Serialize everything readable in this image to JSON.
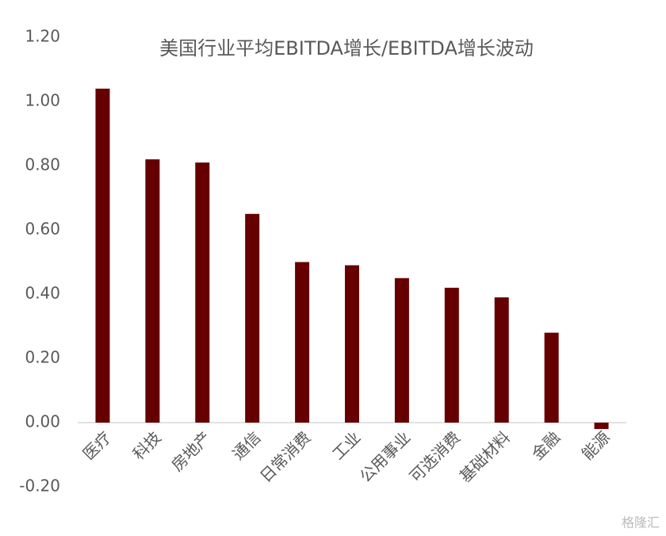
{
  "chart_data": {
    "type": "bar",
    "title": "美国行业平均EBITDA增长/EBITDA增长波动",
    "categories": [
      "医疗",
      "科技",
      "房地产",
      "通信",
      "日常消费",
      "工业",
      "公用事业",
      "可选消费",
      "基础材料",
      "金融",
      "能源"
    ],
    "values": [
      1.04,
      0.82,
      0.81,
      0.65,
      0.5,
      0.49,
      0.45,
      0.42,
      0.39,
      0.28,
      -0.02
    ],
    "color": "#660000",
    "ylim": [
      -0.2,
      1.2
    ],
    "yticks": [
      {
        "value": -0.2,
        "label": "-0.20"
      },
      {
        "value": 0,
        "label": "0.00"
      },
      {
        "value": 0.2,
        "label": "0.20"
      },
      {
        "value": 0.4,
        "label": "0.40"
      },
      {
        "value": 0.6,
        "label": "0.60"
      },
      {
        "value": 0.8,
        "label": "0.80"
      },
      {
        "value": 1,
        "label": "1.00"
      },
      {
        "value": 1.2,
        "label": "1.20"
      }
    ],
    "grid": false,
    "watermark": "格隆汇"
  }
}
